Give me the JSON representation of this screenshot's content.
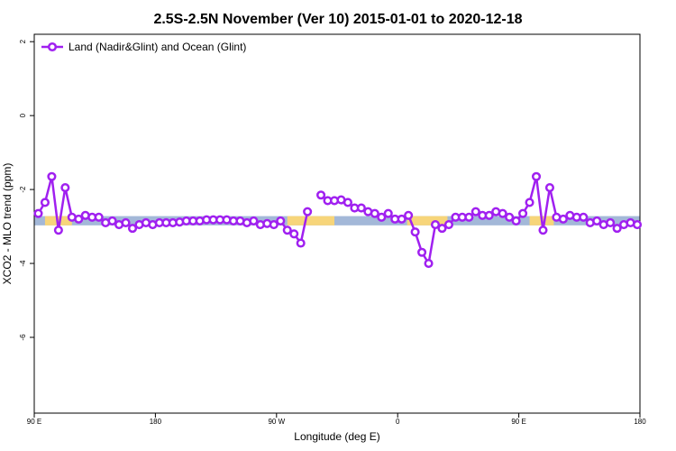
{
  "chart_data": {
    "type": "line",
    "title": "2.5S-2.5N November (Ver 10)   2015-01-01 to 2020-12-18",
    "x_label": "Longitude (deg E)",
    "y_label": "XCO2 - MLO trend (ppm)",
    "xlim": [
      90,
      540
    ],
    "ylim": [
      -8.05,
      2.2
    ],
    "xticks": [
      {
        "value": 90,
        "label": "90 E"
      },
      {
        "value": 180,
        "label": "180"
      },
      {
        "value": 270,
        "label": "90 W"
      },
      {
        "value": 360,
        "label": "0"
      },
      {
        "value": 450,
        "label": "90 E"
      },
      {
        "value": 540,
        "label": "180"
      }
    ],
    "yticks": [
      -6,
      -4,
      -2,
      0,
      2
    ],
    "legend_position": "top-left",
    "mask": {
      "ylim": [
        -2.97,
        -2.72
      ],
      "ocean_color": "#a3b8d8",
      "land_color": "#f7d57a",
      "land": [
        [
          98,
          118
        ],
        [
          278,
          313
        ],
        [
          367,
          397
        ],
        [
          458,
          476
        ]
      ]
    },
    "x": [
      93,
      98,
      103,
      108,
      113,
      118,
      123,
      128,
      133,
      138,
      143,
      148,
      153,
      158,
      163,
      168,
      173,
      178,
      183,
      188,
      193,
      198,
      203,
      208,
      213,
      218,
      223,
      228,
      233,
      238,
      243,
      248,
      253,
      258,
      263,
      268,
      273,
      278,
      283,
      288,
      293,
      298,
      303,
      308,
      313,
      318,
      323,
      328,
      333,
      338,
      343,
      348,
      353,
      358,
      363,
      368,
      373,
      378,
      383,
      388,
      393,
      398,
      403,
      408,
      413,
      418,
      423,
      428,
      433,
      438,
      443,
      448,
      453,
      458,
      463,
      468,
      473,
      478,
      483,
      488,
      493,
      498,
      503,
      508,
      513,
      518,
      523,
      528,
      533,
      538
    ],
    "series": [
      {
        "name": "Land (Nadir&Glint) and Ocean (Glint)",
        "color": "#a020f0",
        "values": [
          -2.65,
          -2.35,
          -1.65,
          -3.1,
          -1.95,
          -2.75,
          -2.8,
          -2.7,
          -2.75,
          -2.75,
          -2.9,
          -2.85,
          -2.95,
          -2.9,
          -3.05,
          -2.95,
          -2.9,
          -2.95,
          -2.9,
          -2.9,
          -2.9,
          -2.88,
          -2.85,
          -2.85,
          -2.85,
          -2.82,
          -2.82,
          -2.82,
          -2.82,
          -2.85,
          -2.85,
          -2.9,
          -2.85,
          -2.95,
          -2.92,
          -2.95,
          -2.85,
          -3.1,
          -3.2,
          -3.45,
          -2.6,
          null,
          -2.15,
          -2.3,
          -2.3,
          -2.28,
          -2.35,
          -2.5,
          -2.5,
          -2.6,
          -2.65,
          -2.75,
          -2.65,
          -2.8,
          -2.8,
          -2.7,
          -3.15,
          -3.7,
          -4.0,
          -2.95,
          -3.05,
          -2.95,
          -2.75,
          -2.75,
          -2.75,
          -2.6,
          -2.7,
          -2.7,
          -2.6,
          -2.65,
          -2.75,
          -2.85,
          -2.65,
          -2.35,
          -1.65,
          -3.1,
          -1.95,
          -2.75,
          -2.8,
          -2.7,
          -2.75,
          -2.75,
          -2.9,
          -2.85,
          -2.95,
          -2.9,
          -3.05,
          -2.95,
          -2.9,
          -2.95
        ]
      }
    ]
  }
}
